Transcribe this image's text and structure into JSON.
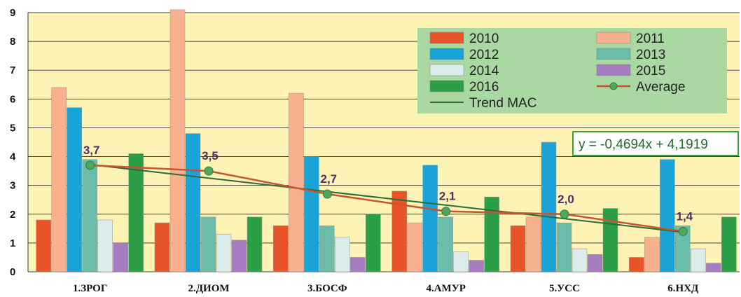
{
  "chart_data": {
    "type": "bar",
    "title": "",
    "xlabel": "",
    "ylabel": "",
    "ylim": [
      0,
      9
    ],
    "yticks": [
      "0",
      "1",
      "2",
      "3",
      "4",
      "5",
      "6",
      "7",
      "8",
      "9"
    ],
    "grid": true,
    "legend_position": "top-right",
    "categories": [
      "1.ЗРОГ",
      "2.ДИОМ",
      "3.БОСФ",
      "4.АМУР",
      "5.УСС",
      "6.НХД"
    ],
    "series": [
      {
        "name": "2010",
        "color": "#e8542a",
        "values": [
          1.8,
          1.7,
          1.6,
          2.8,
          1.6,
          0.5
        ]
      },
      {
        "name": "2011",
        "color": "#f8b08e",
        "values": [
          6.4,
          9.1,
          6.2,
          1.7,
          1.9,
          1.2
        ]
      },
      {
        "name": "2012",
        "color": "#1aa3d6",
        "values": [
          5.7,
          4.8,
          4.0,
          3.7,
          4.5,
          3.9
        ]
      },
      {
        "name": "2013",
        "color": "#6bbcaa",
        "values": [
          3.9,
          1.9,
          1.6,
          1.9,
          1.7,
          1.6
        ]
      },
      {
        "name": "2014",
        "color": "#dcecec",
        "values": [
          1.8,
          1.3,
          1.2,
          0.7,
          0.8,
          0.8
        ]
      },
      {
        "name": "2015",
        "color": "#a57cc1",
        "values": [
          1.0,
          1.1,
          0.5,
          0.4,
          0.6,
          0.3
        ]
      },
      {
        "name": "2016",
        "color": "#2c9e46",
        "values": [
          4.1,
          1.9,
          2.0,
          2.6,
          2.2,
          1.9
        ]
      }
    ],
    "average": {
      "name": "Average",
      "color": "#c8552e",
      "marker_color": "#4fa860",
      "values": [
        3.7,
        3.5,
        2.7,
        2.1,
        2.0,
        1.4
      ],
      "labels": [
        "3,7",
        "3,5",
        "2,7",
        "2,1",
        "2,0",
        "1,4"
      ]
    },
    "trend": {
      "name": "Trend MAC",
      "color": "#2d6b3c",
      "slope": -0.4694,
      "intercept": 4.1919,
      "equation": "y = -0,4694x + 4,1919"
    },
    "colors": {
      "plot_background": "#fdf3b4",
      "grid": "#444444",
      "legend_background": "#a9d8a3",
      "equation_border": "#3aa046"
    }
  }
}
